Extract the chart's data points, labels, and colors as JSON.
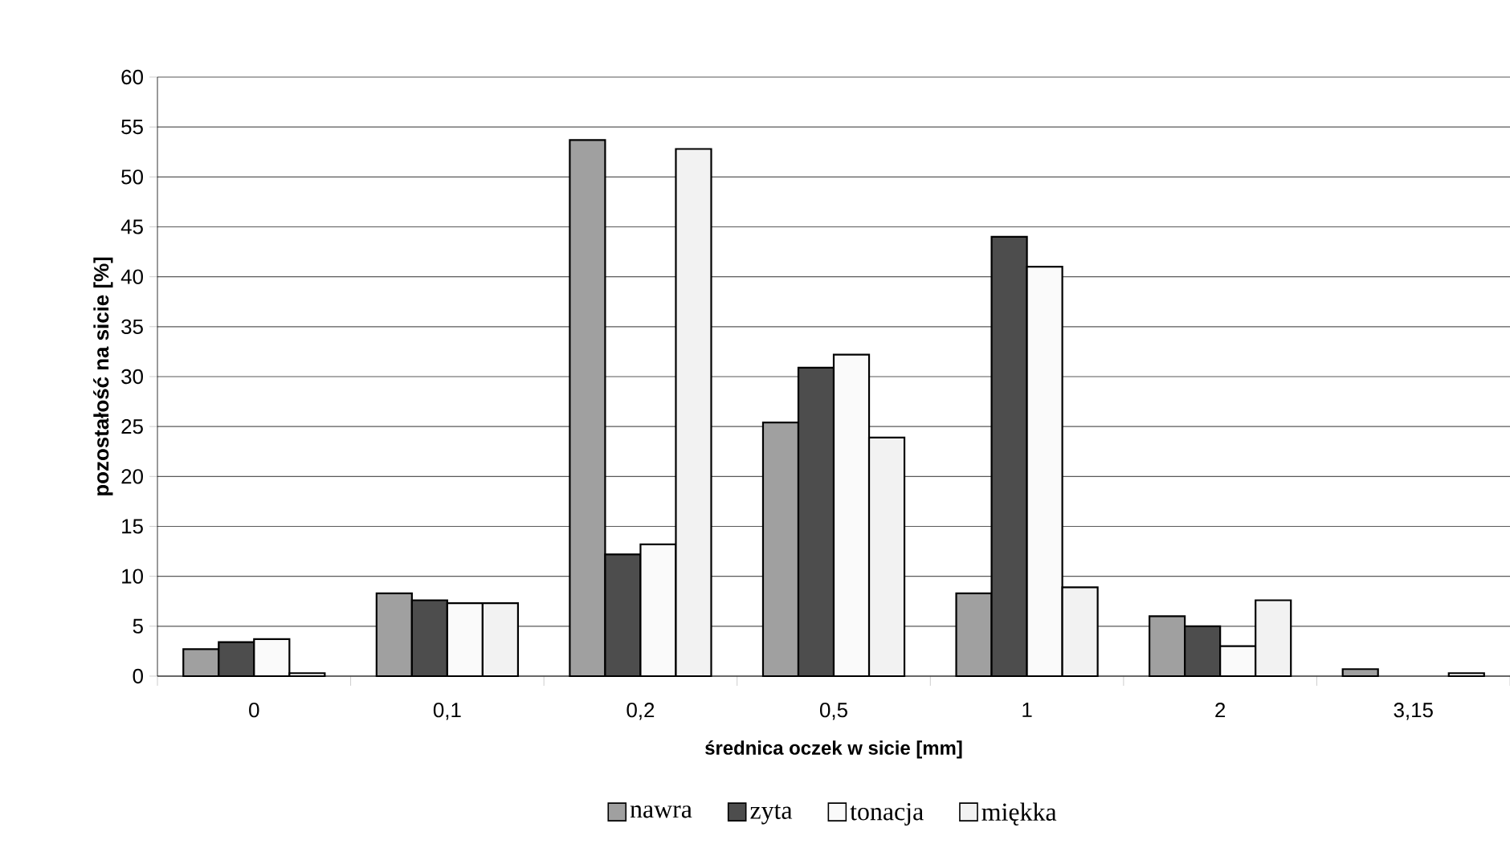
{
  "chart_data": {
    "type": "bar",
    "xlabel": "średnica oczek w sicie [mm]",
    "ylabel": "pozostałość na sicie [%]",
    "categories": [
      "0",
      "0,1",
      "0,2",
      "0,5",
      "1",
      "2",
      "3,15"
    ],
    "series": [
      {
        "name": "nawra",
        "color": "#a0a0a0",
        "values": [
          2.7,
          8.3,
          53.7,
          25.4,
          8.3,
          6.0,
          0.7
        ]
      },
      {
        "name": "zyta",
        "color": "#4d4d4d",
        "values": [
          3.4,
          7.6,
          12.2,
          30.9,
          44.0,
          5.0,
          null
        ]
      },
      {
        "name": "tonacja",
        "color": "#fafafa",
        "values": [
          3.7,
          7.3,
          13.2,
          32.2,
          41.0,
          3.0,
          null
        ]
      },
      {
        "name": "miękka",
        "color": "#f2f2f2",
        "values": [
          0.3,
          7.3,
          52.8,
          23.9,
          8.9,
          7.6,
          0.3
        ]
      }
    ],
    "ylim": [
      0,
      60
    ],
    "yticks": [
      0,
      5,
      10,
      15,
      20,
      25,
      30,
      35,
      40,
      45,
      50,
      55,
      60
    ],
    "grid": "y",
    "legend": "bottom"
  }
}
